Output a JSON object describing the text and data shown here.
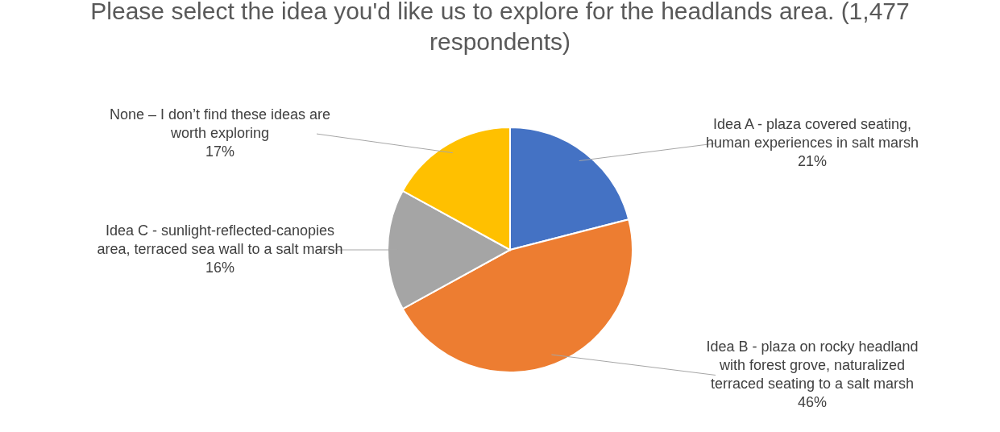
{
  "chart_data": {
    "type": "pie",
    "title": "Please select the idea you'd like us to explore for the headlands area. (1,477 respondents)",
    "categories": [
      "Idea A - plaza covered seating, human experiences in salt marsh",
      "Idea B - plaza on rocky headland with forest grove, naturalized terraced seating to a salt marsh",
      "Idea C - sunlight-reflected-canopies area, terraced sea wall to a salt marsh",
      "None – I don’t find these ideas are worth exploring"
    ],
    "values": [
      21,
      46,
      16,
      17
    ],
    "value_labels": [
      "21%",
      "46%",
      "16%",
      "17%"
    ],
    "colors": [
      "#4472c4",
      "#ed7d31",
      "#a5a5a5",
      "#ffc000"
    ]
  }
}
